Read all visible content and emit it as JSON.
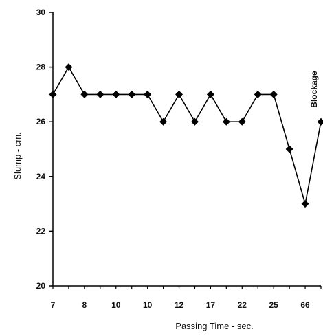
{
  "chart_data": {
    "type": "line",
    "title": "",
    "xlabel": "Passing Time - sec.",
    "ylabel": "Slump - cm.",
    "ylim": [
      20,
      30
    ],
    "yticks": [
      20,
      22,
      24,
      26,
      28,
      30
    ],
    "x_tick_labels": [
      "7",
      "8",
      "10",
      "10",
      "12",
      "17",
      "22",
      "25",
      "66"
    ],
    "series": [
      {
        "values": [
          27,
          28,
          27,
          27,
          27,
          27,
          27,
          26,
          27,
          26,
          27,
          26,
          26,
          27,
          27,
          25,
          23,
          26
        ]
      }
    ],
    "annotation": "Blockage",
    "grid": false,
    "colors": {
      "line": "#000000",
      "marker": "#000000"
    }
  }
}
